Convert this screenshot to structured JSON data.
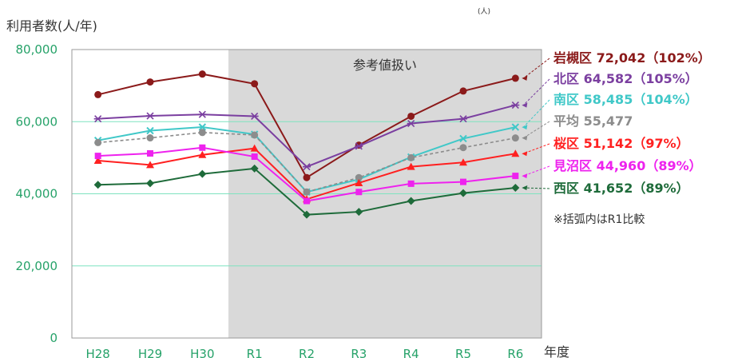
{
  "chart_data": {
    "type": "line",
    "title": "",
    "ylabel": "利用者数(人/年)",
    "xlabel": "年度",
    "unit": "(人)",
    "ylim": [
      0,
      80000
    ],
    "yticks": [
      "0",
      "20,000",
      "40,000",
      "60,000",
      "80,000"
    ],
    "ytick_values": [
      0,
      20000,
      40000,
      60000,
      80000
    ],
    "categories": [
      "H28",
      "H29",
      "H30",
      "R1",
      "R2",
      "R3",
      "R4",
      "R5",
      "R6"
    ],
    "shaded_region": {
      "from": "R1",
      "to": "R6",
      "label": "参考値扱い",
      "color": "#d9d9d9"
    },
    "grid": true,
    "legend": "right-end labels",
    "series": [
      {
        "name": "岩槻区",
        "value_label": "72,042",
        "pct_label": "（102%）",
        "color": "#8b1a1a",
        "marker": "circle",
        "dashed": false,
        "values": [
          67500,
          71000,
          73200,
          70500,
          44500,
          53500,
          61500,
          68500,
          72042
        ]
      },
      {
        "name": "北区",
        "value_label": "64,582",
        "pct_label": "（105%）",
        "color": "#7b3fa0",
        "marker": "star",
        "dashed": false,
        "values": [
          60800,
          61600,
          62000,
          61500,
          47500,
          53200,
          59500,
          60800,
          64582
        ]
      },
      {
        "name": "南区",
        "value_label": "58,485",
        "pct_label": "（104%）",
        "color": "#40c8c8",
        "marker": "x",
        "dashed": false,
        "values": [
          54800,
          57500,
          58500,
          56500,
          40500,
          44000,
          50200,
          55300,
          58485
        ]
      },
      {
        "name": "平均",
        "value_label": "55,477",
        "pct_label": "",
        "color": "#8c8c8c",
        "marker": "circle",
        "dashed": true,
        "values": [
          54200,
          55500,
          57000,
          56300,
          40500,
          44500,
          50000,
          52800,
          55477
        ]
      },
      {
        "name": "桜区",
        "value_label": "51,142",
        "pct_label": "（97%）",
        "color": "#ff2020",
        "marker": "triangle",
        "dashed": false,
        "values": [
          49200,
          48000,
          50800,
          52600,
          38500,
          43000,
          47500,
          48700,
          51142
        ]
      },
      {
        "name": "見沼区",
        "value_label": "44,960",
        "pct_label": "（89%）",
        "color": "#ee22ee",
        "marker": "square",
        "dashed": false,
        "values": [
          50500,
          51200,
          52800,
          50300,
          38000,
          40500,
          42800,
          43300,
          44960
        ]
      },
      {
        "name": "西区",
        "value_label": "41,652",
        "pct_label": "（89%）",
        "color": "#1e6b3a",
        "marker": "diamond",
        "dashed": false,
        "values": [
          42500,
          42900,
          45500,
          47000,
          34200,
          35000,
          38000,
          40200,
          41652
        ]
      }
    ],
    "note": "※括弧内はR1比較"
  }
}
